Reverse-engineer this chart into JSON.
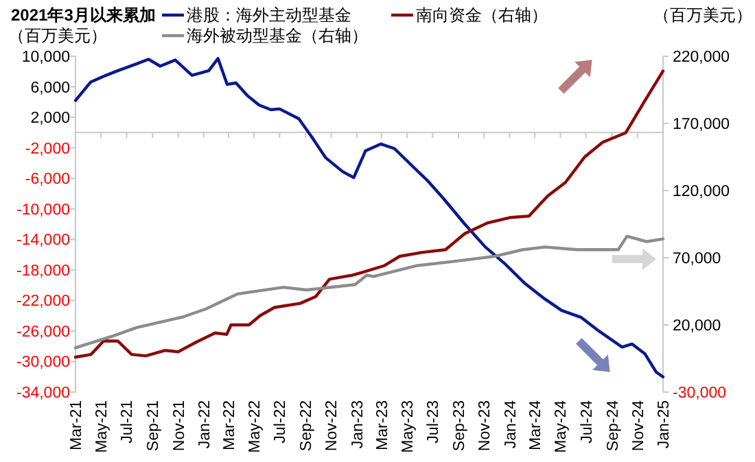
{
  "chart_data": {
    "type": "line",
    "title": "2021年3月以来累加",
    "ylabel": "（百万美元）",
    "y2label": "（百万美元）",
    "legend": "top",
    "grid": false,
    "marker": "none",
    "line_style": "solid",
    "xlim": [
      "2021-03-01",
      "2025-01-01"
    ],
    "xticks": [
      {
        "value": "2021-03-01",
        "label": "Mar-21"
      },
      {
        "value": "2021-05-01",
        "label": "May-21"
      },
      {
        "value": "2021-07-01",
        "label": "Jul-21"
      },
      {
        "value": "2021-09-01",
        "label": "Sep-21"
      },
      {
        "value": "2021-11-01",
        "label": "Nov-21"
      },
      {
        "value": "2022-01-01",
        "label": "Jan-22"
      },
      {
        "value": "2022-03-01",
        "label": "Mar-22"
      },
      {
        "value": "2022-05-01",
        "label": "May-22"
      },
      {
        "value": "2022-07-01",
        "label": "Jul-22"
      },
      {
        "value": "2022-09-01",
        "label": "Sep-22"
      },
      {
        "value": "2022-11-01",
        "label": "Nov-22"
      },
      {
        "value": "2023-01-01",
        "label": "Jan-23"
      },
      {
        "value": "2023-03-01",
        "label": "Mar-23"
      },
      {
        "value": "2023-05-01",
        "label": "May-23"
      },
      {
        "value": "2023-07-01",
        "label": "Jul-23"
      },
      {
        "value": "2023-09-01",
        "label": "Sep-23"
      },
      {
        "value": "2023-11-01",
        "label": "Nov-23"
      },
      {
        "value": "2024-01-01",
        "label": "Jan-24"
      },
      {
        "value": "2024-03-01",
        "label": "Mar-24"
      },
      {
        "value": "2024-05-01",
        "label": "May-24"
      },
      {
        "value": "2024-07-01",
        "label": "Jul-24"
      },
      {
        "value": "2024-09-01",
        "label": "Sep-24"
      },
      {
        "value": "2024-11-01",
        "label": "Nov-24"
      },
      {
        "value": "2025-01-01",
        "label": "Jan-25"
      }
    ],
    "ylim": [
      -34000,
      10000
    ],
    "yticks": [
      {
        "value": 10000,
        "label": "10,000"
      },
      {
        "value": 6000,
        "label": "6,000"
      },
      {
        "value": 2000,
        "label": "2,000"
      },
      {
        "value": -2000,
        "label": "-2,000"
      },
      {
        "value": -6000,
        "label": "-6,000"
      },
      {
        "value": -10000,
        "label": "-10,000"
      },
      {
        "value": -14000,
        "label": "-14,000"
      },
      {
        "value": -18000,
        "label": "-18,000"
      },
      {
        "value": -22000,
        "label": "-22,000"
      },
      {
        "value": -26000,
        "label": "-26,000"
      },
      {
        "value": -30000,
        "label": "-30,000"
      },
      {
        "value": -34000,
        "label": "-34,000"
      }
    ],
    "y2lim": [
      -30000,
      220000
    ],
    "y2ticks": [
      {
        "value": 220000,
        "label": "220,000"
      },
      {
        "value": 170000,
        "label": "170,000"
      },
      {
        "value": 120000,
        "label": "120,000"
      },
      {
        "value": 70000,
        "label": "70,000"
      },
      {
        "value": 20000,
        "label": "20,000"
      },
      {
        "value": -30000,
        "label": "-30,000"
      }
    ],
    "series": [
      {
        "name": "港股：海外主动型基金",
        "color": "#0a1a8c",
        "axis": "y",
        "x": [
          "2021-03-01",
          "2021-04-06",
          "2021-05-13",
          "2021-06-10",
          "2021-07-25",
          "2021-08-22",
          "2021-09-19",
          "2021-10-25",
          "2021-12-04",
          "2022-01-13",
          "2022-02-04",
          "2022-02-26",
          "2022-03-19",
          "2022-04-16",
          "2022-05-13",
          "2022-06-10",
          "2022-07-01",
          "2022-08-16",
          "2022-09-16",
          "2022-10-19",
          "2022-11-28",
          "2022-12-25",
          "2023-01-22",
          "2023-02-28",
          "2023-04-01",
          "2023-05-16",
          "2023-06-19",
          "2023-07-28",
          "2023-09-16",
          "2023-11-04",
          "2023-12-19",
          "2024-02-07",
          "2024-03-25",
          "2024-05-04",
          "2024-06-19",
          "2024-08-01",
          "2024-09-25",
          "2024-10-19",
          "2024-11-19",
          "2024-12-16",
          "2025-01-01"
        ],
        "values": [
          4200,
          6600,
          7500,
          8100,
          9000,
          9600,
          8700,
          9500,
          7500,
          8100,
          9700,
          6300,
          6500,
          4800,
          3600,
          3000,
          3100,
          1800,
          -600,
          -3300,
          -5100,
          -5900,
          -2400,
          -1500,
          -2100,
          -4500,
          -6300,
          -8700,
          -12000,
          -15000,
          -17100,
          -19800,
          -21800,
          -23300,
          -24200,
          -26000,
          -28100,
          -27700,
          -29000,
          -31400,
          -32000
        ]
      },
      {
        "name": "南向资金（右轴）",
        "color": "#8b0a0a",
        "axis": "y2",
        "x": [
          "2021-03-01",
          "2021-04-07",
          "2021-05-07",
          "2021-06-10",
          "2021-07-13",
          "2021-08-16",
          "2021-10-01",
          "2021-11-01",
          "2021-12-13",
          "2022-01-28",
          "2022-02-25",
          "2022-03-07",
          "2022-04-19",
          "2022-05-16",
          "2022-06-19",
          "2022-08-19",
          "2022-09-25",
          "2022-10-28",
          "2022-12-22",
          "2023-01-13",
          "2023-03-07",
          "2023-04-13",
          "2023-06-07",
          "2023-08-01",
          "2023-09-16",
          "2023-11-10",
          "2024-01-04",
          "2024-02-16",
          "2024-04-01",
          "2024-05-13",
          "2024-06-28",
          "2024-08-10",
          "2024-10-04",
          "2024-11-19",
          "2025-01-01"
        ],
        "values": [
          -4000,
          -2000,
          8000,
          8000,
          -2000,
          -3000,
          1000,
          0,
          7000,
          14000,
          13000,
          20000,
          20000,
          27000,
          33000,
          36000,
          41000,
          54000,
          57000,
          59000,
          64000,
          71000,
          74000,
          76000,
          88000,
          96000,
          100000,
          101000,
          116000,
          126000,
          145000,
          156000,
          163000,
          187000,
          209000
        ]
      },
      {
        "name": "海外被动型基金（右轴）",
        "color": "#8c8c8c",
        "axis": "y2",
        "x": [
          "2021-03-01",
          "2021-06-01",
          "2021-07-25",
          "2021-11-13",
          "2022-01-07",
          "2022-03-22",
          "2022-07-10",
          "2022-09-04",
          "2022-12-28",
          "2023-01-25",
          "2023-02-10",
          "2023-05-22",
          "2023-09-10",
          "2023-11-25",
          "2024-02-01",
          "2024-03-25",
          "2024-06-10",
          "2024-09-16",
          "2024-10-07",
          "2024-11-22",
          "2025-01-01"
        ],
        "values": [
          3000,
          12000,
          18000,
          26000,
          32000,
          43000,
          48000,
          46000,
          50000,
          57000,
          56000,
          64000,
          68000,
          71000,
          76000,
          78000,
          76000,
          76000,
          86000,
          82000,
          84000
        ]
      }
    ]
  }
}
